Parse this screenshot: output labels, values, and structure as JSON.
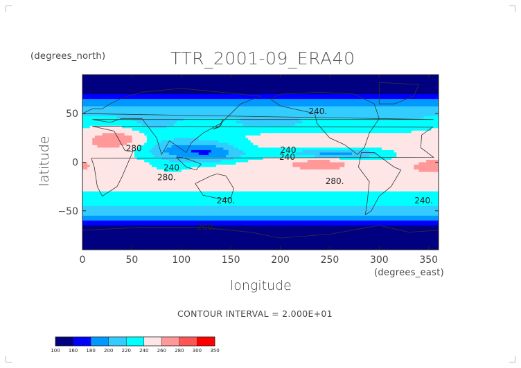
{
  "chart_data": {
    "type": "heatmap",
    "title": "TTR_2001-09_ERA40",
    "xlabel": "longitude",
    "ylabel": "latitude",
    "x_units": "(degrees_east)",
    "y_units": "(degrees_north)",
    "xlim": [
      0,
      360
    ],
    "ylim": [
      -90,
      90
    ],
    "xticks": [
      "0",
      "50",
      "100",
      "150",
      "200",
      "250",
      "300",
      "350"
    ],
    "yticks": [
      "50",
      "0",
      "−50"
    ],
    "contour_interval_text": "CONTOUR INTERVAL = 2.000E+01",
    "colorbar": {
      "levels": [
        "100",
        "160",
        "180",
        "200",
        "220",
        "240",
        "260",
        "280",
        "300",
        "350"
      ],
      "colors": [
        "#000080",
        "#0000ff",
        "#0099ff",
        "#33ccff",
        "#00ffff",
        "#ffe6e6",
        "#ff9999",
        "#ff5555",
        "#ff0000"
      ]
    },
    "contour_labels": [
      {
        "text": "240.",
        "lon": 238,
        "lat": 52
      },
      {
        "text": "280",
        "lon": 52,
        "lat": 14
      },
      {
        "text": "240",
        "lon": 208,
        "lat": 12
      },
      {
        "text": "240",
        "lon": 207,
        "lat": 5
      },
      {
        "text": "240",
        "lon": 90,
        "lat": -6
      },
      {
        "text": "280.",
        "lon": 85,
        "lat": -16
      },
      {
        "text": "280.",
        "lon": 255,
        "lat": -20
      },
      {
        "text": "240.",
        "lon": 145,
        "lat": -40
      },
      {
        "text": "240.",
        "lon": 345,
        "lat": -40
      },
      {
        "text": "200.",
        "lon": 125,
        "lat": -67
      }
    ],
    "grid": false,
    "legend": "bottom-left colorbar"
  }
}
